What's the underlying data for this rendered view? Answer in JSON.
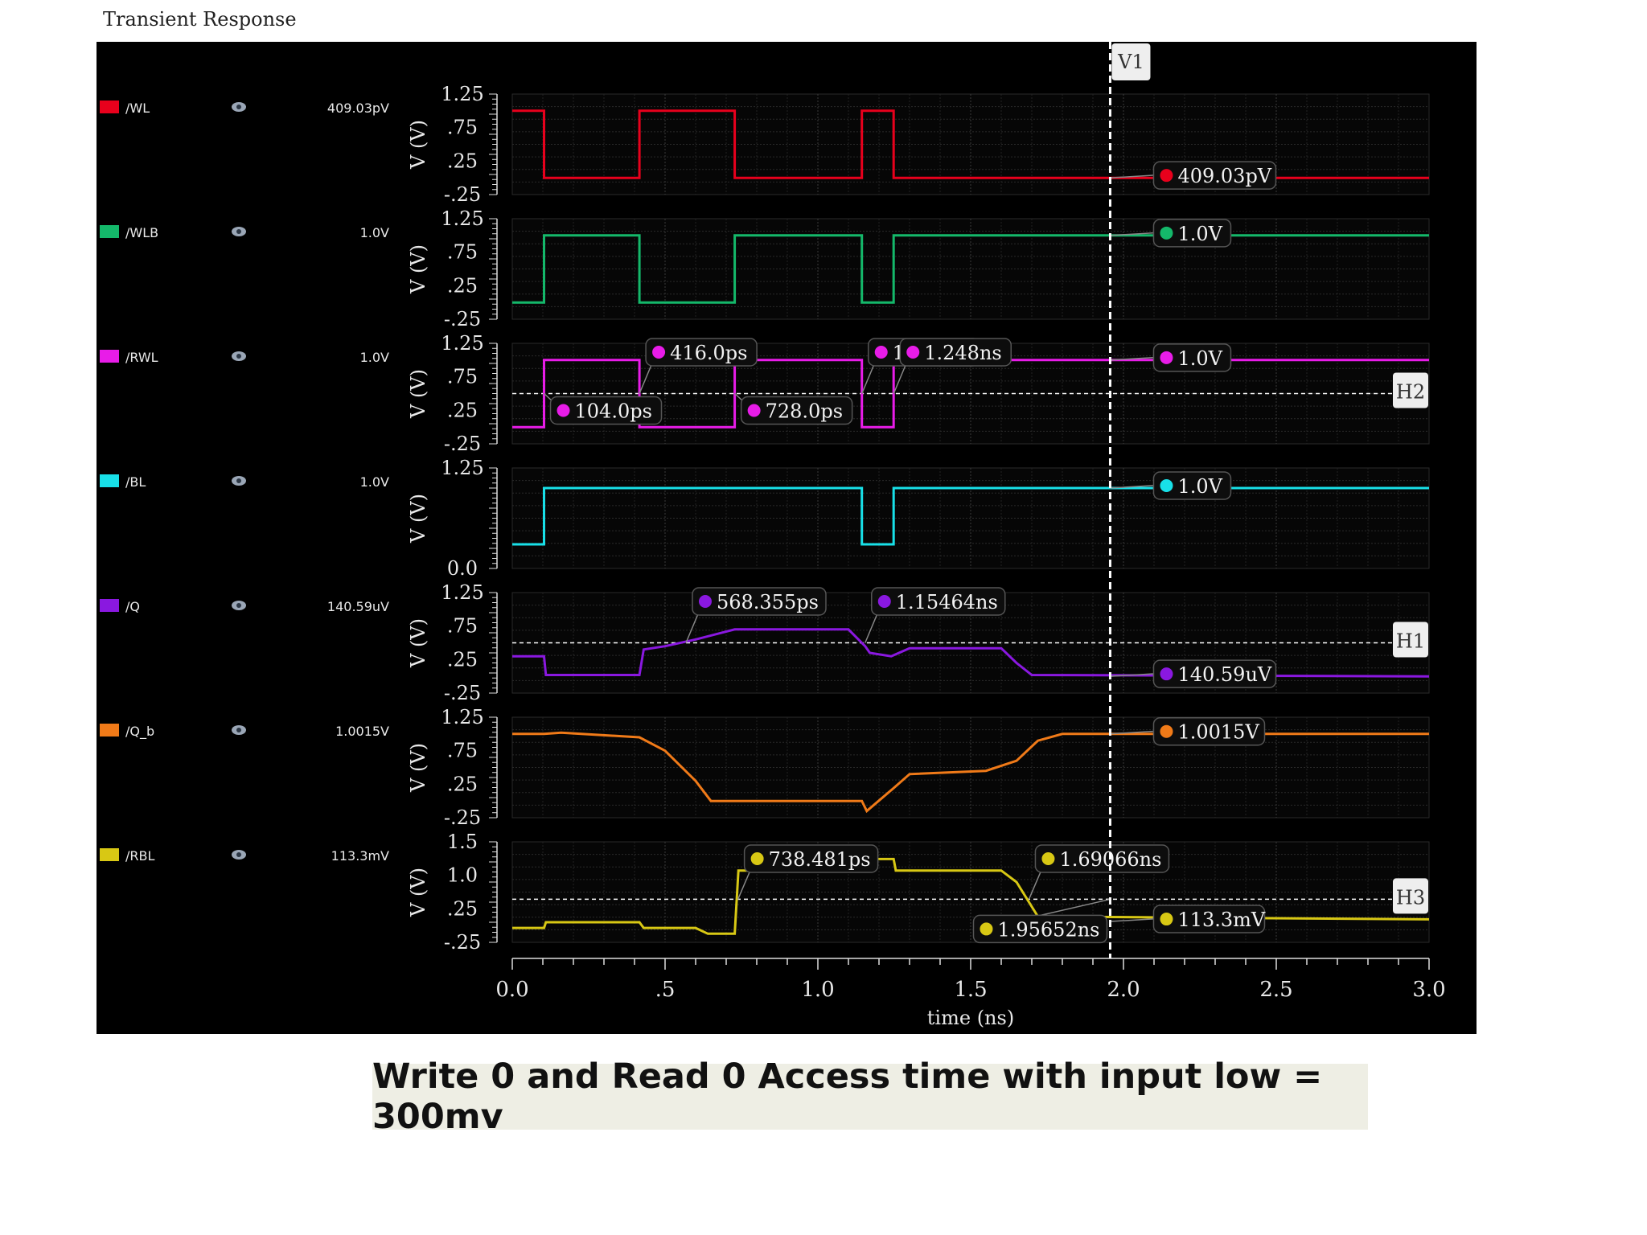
{
  "title": "Transient Response",
  "caption": "Write 0 and Read 0 Access time with input low = 300mv",
  "chart_data": {
    "type": "line",
    "xlabel": "time (ns)",
    "xlim": [
      0,
      3.0
    ],
    "xticks": [
      "0.0",
      ".5",
      "1.0",
      "1.5",
      "2.0",
      "2.5",
      "3.0"
    ],
    "vertical_cursor": {
      "label": "V1",
      "x": 1.95652
    },
    "grid": true,
    "panels": [
      {
        "name": "/WL",
        "color": "#e8001c",
        "legend_value": "409.03pV",
        "ylabel": "V (V)",
        "ylim": [
          -0.25,
          1.25
        ],
        "yticks": [
          "1.25",
          ".75",
          ".25",
          "-.25"
        ],
        "x": [
          0,
          0.104,
          0.104,
          0.416,
          0.416,
          0.728,
          0.728,
          1.144,
          1.144,
          1.248,
          1.248,
          3.0
        ],
        "y": [
          1.0,
          1.0,
          0.0,
          0.0,
          1.0,
          1.0,
          0.0,
          0.0,
          1.0,
          1.0,
          0.0,
          0.0
        ],
        "markers": [
          {
            "text": "409.03pV",
            "x": 1.95652,
            "y": 0.0
          }
        ]
      },
      {
        "name": "/WLB",
        "color": "#14b86a",
        "legend_value": "1.0V",
        "ylabel": "V (V)",
        "ylim": [
          -0.25,
          1.25
        ],
        "yticks": [
          "1.25",
          ".75",
          ".25",
          "-.25"
        ],
        "x": [
          0,
          0.104,
          0.104,
          0.416,
          0.416,
          0.728,
          0.728,
          1.144,
          1.144,
          1.248,
          1.248,
          3.0
        ],
        "y": [
          0.0,
          0.0,
          1.0,
          1.0,
          0.0,
          0.0,
          1.0,
          1.0,
          0.0,
          0.0,
          1.0,
          1.0
        ],
        "markers": [
          {
            "text": "1.0V",
            "x": 1.95652,
            "y": 1.0
          }
        ]
      },
      {
        "name": "/RWL",
        "color": "#e81ce8",
        "legend_value": "1.0V",
        "ylabel": "V (V)",
        "ylim": [
          -0.25,
          1.25
        ],
        "yticks": [
          "1.25",
          ".75",
          ".25",
          "-.25"
        ],
        "x": [
          0,
          0.104,
          0.104,
          0.416,
          0.416,
          0.728,
          0.728,
          1.144,
          1.144,
          1.248,
          1.248,
          3.0
        ],
        "y": [
          0.0,
          0.0,
          1.0,
          1.0,
          0.0,
          0.0,
          1.0,
          1.0,
          0.0,
          0.0,
          1.0,
          1.0
        ],
        "hline": {
          "label": "H2",
          "y": 0.5
        },
        "markers": [
          {
            "text": "416.0ps",
            "x": 0.416,
            "y": 0.5
          },
          {
            "text": "1.144ns",
            "x": 1.144,
            "y": 0.5
          },
          {
            "text": "1.248ns",
            "x": 1.248,
            "y": 0.5
          },
          {
            "text": "104.0ps",
            "x": 0.104,
            "y": 0.5
          },
          {
            "text": "728.0ps",
            "x": 0.728,
            "y": 0.5
          },
          {
            "text": "1.0V",
            "x": 1.95652,
            "y": 1.0
          }
        ]
      },
      {
        "name": "/BL",
        "color": "#18e0e8",
        "legend_value": "1.0V",
        "ylabel": "V (V)",
        "ylim": [
          0.0,
          1.25
        ],
        "yticks": [
          "1.25",
          "0.0"
        ],
        "x": [
          0,
          0.104,
          0.104,
          1.144,
          1.144,
          1.248,
          1.248,
          3.0
        ],
        "y": [
          0.3,
          0.3,
          1.0,
          1.0,
          0.3,
          0.3,
          1.0,
          1.0
        ],
        "markers": [
          {
            "text": "1.0V",
            "x": 1.95652,
            "y": 1.0
          }
        ]
      },
      {
        "name": "/Q",
        "color": "#8a18e0",
        "legend_value": "140.59uV",
        "ylabel": "V (V)",
        "ylim": [
          -0.25,
          1.25
        ],
        "yticks": [
          "1.25",
          ".75",
          ".25",
          "-.25"
        ],
        "x": [
          0,
          0.104,
          0.11,
          0.416,
          0.43,
          0.5,
          0.6,
          0.728,
          1.1,
          1.15464,
          1.17,
          1.24,
          1.3,
          1.6,
          1.65,
          1.7,
          3.0
        ],
        "y": [
          0.3,
          0.3,
          0.02,
          0.02,
          0.4,
          0.45,
          0.55,
          0.7,
          0.7,
          0.45,
          0.35,
          0.3,
          0.42,
          0.42,
          0.2,
          0.02,
          0.0
        ],
        "hline": {
          "label": "H1",
          "y": 0.5
        },
        "markers": [
          {
            "text": "568.355ps",
            "x": 0.568355,
            "y": 0.5
          },
          {
            "text": "1.15464ns",
            "x": 1.15464,
            "y": 0.5
          },
          {
            "text": "140.59uV",
            "x": 1.95652,
            "y": 0.0
          }
        ]
      },
      {
        "name": "/Q_b",
        "color": "#f07a18",
        "legend_value": "1.0015V",
        "ylabel": "V (V)",
        "ylim": [
          -0.25,
          1.25
        ],
        "yticks": [
          "1.25",
          ".75",
          ".25",
          "-.25"
        ],
        "x": [
          0,
          0.104,
          0.16,
          0.416,
          0.5,
          0.6,
          0.65,
          1.144,
          1.16,
          1.25,
          1.3,
          1.55,
          1.65,
          1.72,
          1.8,
          3.0
        ],
        "y": [
          1.0,
          1.0,
          1.02,
          0.95,
          0.75,
          0.3,
          0.0,
          0.0,
          -0.15,
          0.2,
          0.4,
          0.45,
          0.6,
          0.9,
          1.0,
          1.0
        ],
        "markers": [
          {
            "text": "1.0015V",
            "x": 1.95652,
            "y": 1.0015
          }
        ]
      },
      {
        "name": "/RBL",
        "color": "#d8c814",
        "legend_value": "113.3mV",
        "ylabel": "V (V)",
        "ylim": [
          -0.25,
          1.5
        ],
        "yticks": [
          "1.5",
          "1.0",
          ".25",
          "-.25"
        ],
        "x": [
          0,
          0.104,
          0.11,
          0.416,
          0.43,
          0.6,
          0.64,
          0.728,
          0.74,
          1.144,
          1.15,
          1.248,
          1.255,
          1.6,
          1.65,
          1.72,
          3.0
        ],
        "y": [
          0.0,
          0.0,
          0.1,
          0.1,
          0.0,
          0.0,
          -0.1,
          -0.1,
          1.0,
          1.0,
          1.2,
          1.2,
          1.0,
          1.0,
          0.8,
          0.2,
          0.15
        ],
        "hline": {
          "label": "H3",
          "y": 0.5
        },
        "markers": [
          {
            "text": "738.481ps",
            "x": 0.738481,
            "y": 0.5
          },
          {
            "text": "1.69066ns",
            "x": 1.69066,
            "y": 0.5
          },
          {
            "text": "1.95652ns",
            "x": 1.95652,
            "y": 0.5
          },
          {
            "text": "113.3mV",
            "x": 1.95652,
            "y": 0.1133
          }
        ]
      }
    ]
  }
}
